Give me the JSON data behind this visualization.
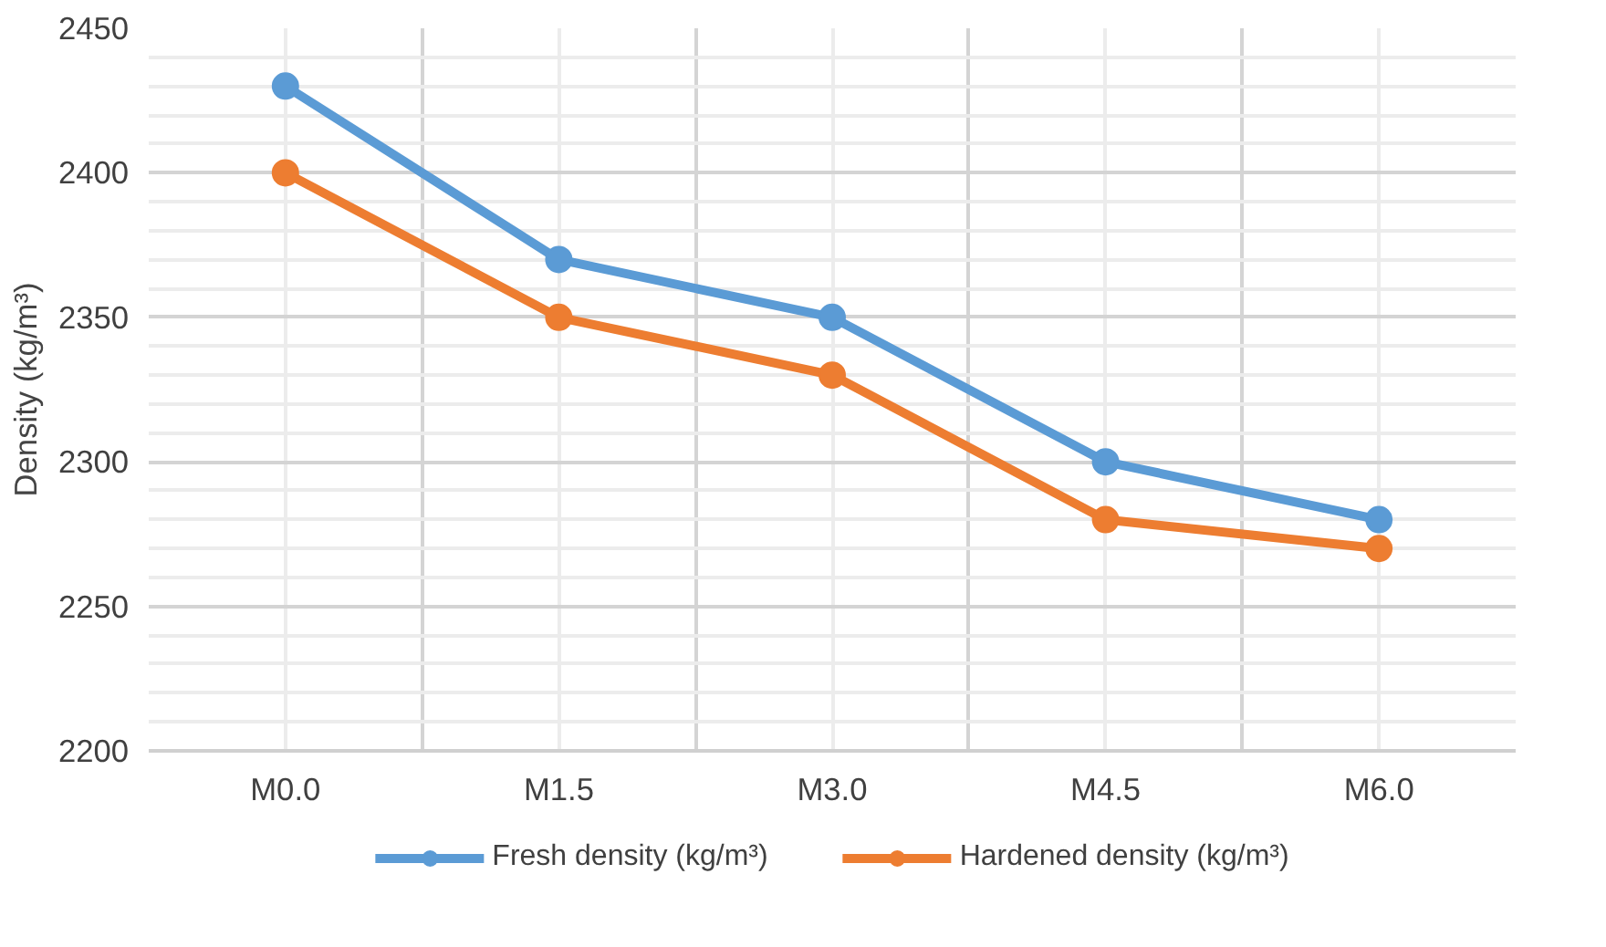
{
  "chart_data": {
    "type": "line",
    "ylabel": "Density (kg/m³)",
    "categories": [
      "M0.0",
      "M1.5",
      "M3.0",
      "M4.5",
      "M6.0"
    ],
    "series": [
      {
        "name": "Fresh density (kg/m³)",
        "color": "#5b9bd5",
        "values": [
          2430,
          2370,
          2350,
          2300,
          2280
        ]
      },
      {
        "name": "Hardened density (kg/m³)",
        "color": "#ed7d31",
        "values": [
          2400,
          2350,
          2330,
          2280,
          2270
        ]
      }
    ],
    "ylim": [
      2200,
      2450
    ],
    "yticks": [
      2200,
      2250,
      2300,
      2350,
      2400,
      2450
    ],
    "grid": true,
    "legend": "bottom",
    "marker": "circle",
    "line_style": "solid"
  }
}
